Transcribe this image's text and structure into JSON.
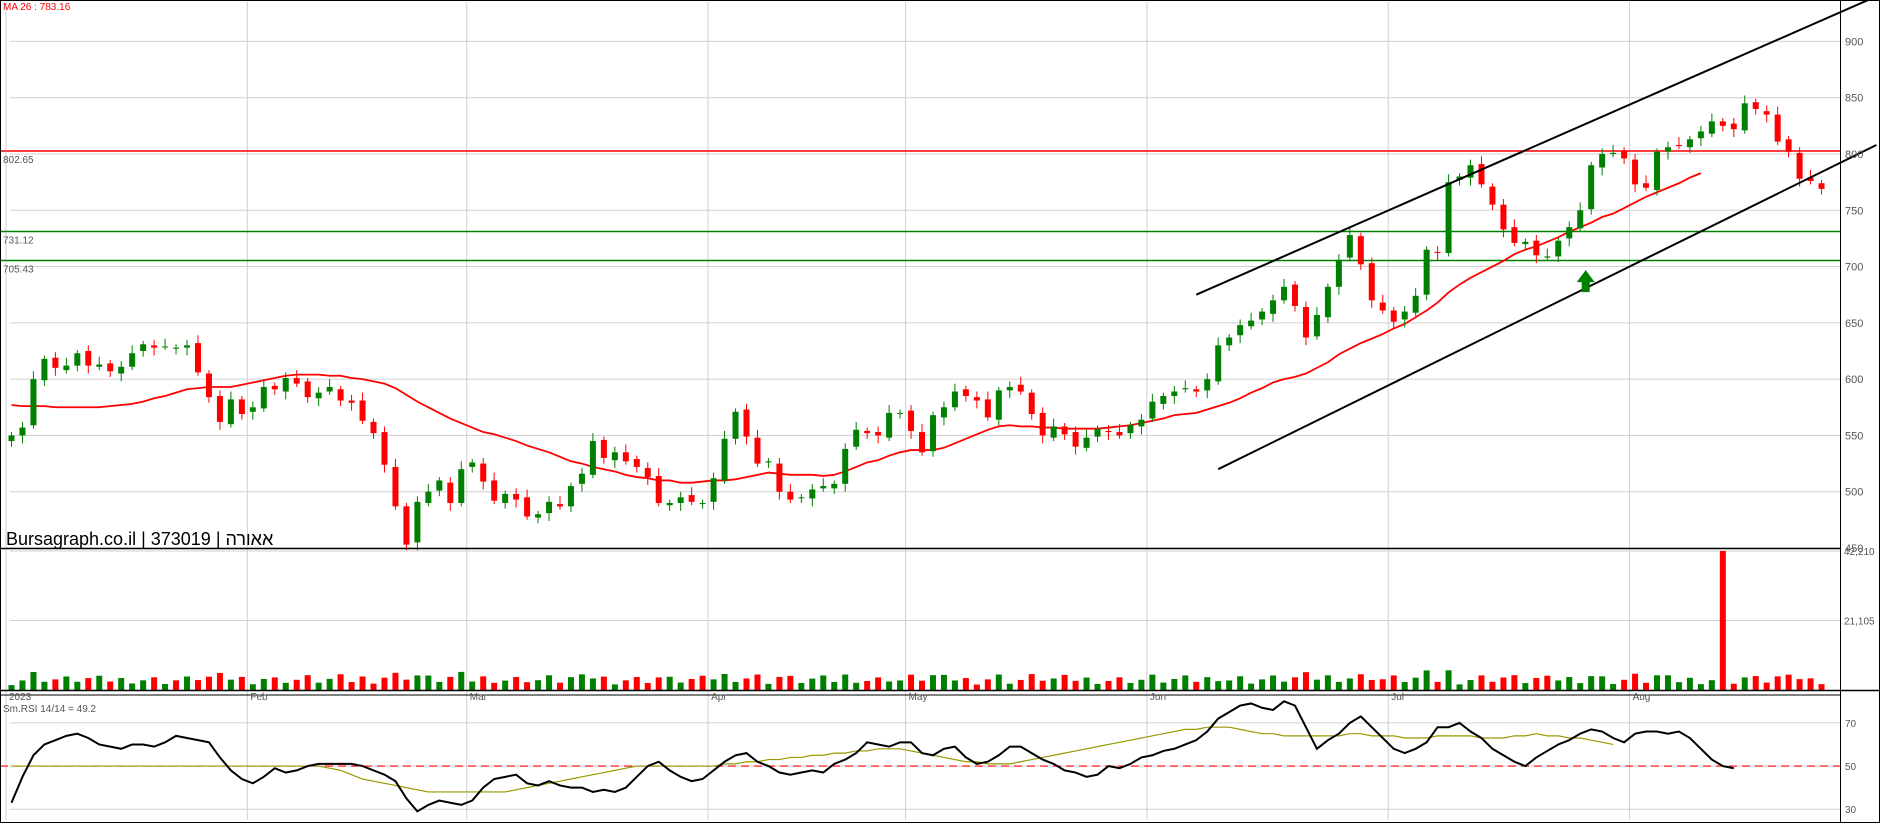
{
  "chart_data": [
    {
      "type": "candlestick",
      "title": "Bursagraph.co.il | 373019 | אאורה",
      "ma_label": "MA 26 : 783.16",
      "price_range": [
        450,
        935
      ],
      "y_ticks": [
        450,
        500,
        550,
        600,
        650,
        700,
        750,
        800,
        850,
        900
      ],
      "month_labels": [
        "2023",
        "Feb",
        "Mar",
        "Apr",
        "May",
        "Jun",
        "Jul",
        "Aug"
      ],
      "month_start_index": [
        0,
        22,
        42,
        64,
        82,
        104,
        126,
        148
      ],
      "horizontal_levels": [
        {
          "label": "802.65",
          "value": 802.65,
          "color": "#ff0000"
        },
        {
          "label": "731.12",
          "value": 731.12,
          "color": "#008000"
        },
        {
          "label": "705.43",
          "value": 705.43,
          "color": "#008000"
        }
      ],
      "trend_lines": [
        {
          "from": [
            110,
            520
          ],
          "to": [
            170,
            808
          ],
          "color": "#000000"
        },
        {
          "from": [
            108,
            675
          ],
          "to": [
            170,
            940
          ],
          "color": "#000000"
        }
      ],
      "arrow": {
        "index": 143.5,
        "value": 688,
        "color": "#008000"
      },
      "ohlc_close": [
        550,
        557,
        600,
        618,
        610,
        612,
        623,
        612,
        613,
        607,
        611,
        623,
        631,
        628,
        629,
        628,
        630,
        606,
        584,
        562,
        582,
        569,
        575,
        593,
        591,
        601,
        596,
        584,
        588,
        593,
        581,
        579,
        563,
        552,
        524,
        487,
        453,
        491,
        500,
        510,
        490,
        520,
        526,
        509,
        492,
        498,
        493,
        478,
        480,
        491,
        487,
        505,
        516,
        545,
        530,
        535,
        527,
        522,
        513,
        490,
        490,
        495,
        491,
        490,
        512,
        547,
        571,
        549,
        525,
        527,
        500,
        493,
        495,
        502,
        505,
        507,
        538,
        555,
        552,
        550,
        570,
        570,
        554,
        535,
        568,
        575,
        589,
        585,
        581,
        566,
        590,
        593,
        589,
        569,
        550,
        558,
        551,
        540,
        548,
        556,
        553,
        550,
        559,
        564,
        580,
        585,
        589,
        592,
        589,
        600,
        630,
        637,
        648,
        652,
        660,
        670,
        682,
        665,
        637,
        657,
        682,
        706,
        728,
        702,
        670,
        661,
        651,
        660,
        674,
        715,
        712,
        775,
        780,
        790,
        773,
        755,
        733,
        721,
        722,
        710,
        709,
        723,
        735,
        750,
        790,
        800,
        801,
        796,
        773,
        770,
        802,
        806,
        807,
        813,
        820,
        829,
        825,
        822,
        845,
        840,
        835,
        811,
        802,
        778,
        776,
        769
      ],
      "ma26": [
        577,
        576,
        576,
        576,
        575,
        575,
        575,
        575,
        575,
        576,
        577,
        578,
        580,
        583,
        585,
        588,
        591,
        592,
        593,
        593,
        593,
        595,
        597,
        599,
        601,
        603,
        604,
        604,
        604,
        603,
        603,
        601,
        600,
        598,
        596,
        592,
        586,
        580,
        575,
        570,
        565,
        561,
        557,
        553,
        551,
        548,
        545,
        541,
        538,
        535,
        531,
        527,
        525,
        522,
        520,
        518,
        515,
        513,
        512,
        510,
        510,
        508,
        508,
        509,
        510,
        510,
        511,
        513,
        515,
        517,
        516,
        515,
        515,
        515,
        514,
        515,
        518,
        522,
        526,
        528,
        532,
        535,
        537,
        537,
        537,
        539,
        543,
        547,
        551,
        555,
        558,
        559,
        558,
        558,
        557,
        557,
        556,
        556,
        556,
        556,
        557,
        558,
        559,
        561,
        563,
        565,
        568,
        569,
        570,
        573,
        576,
        579,
        583,
        588,
        592,
        597,
        600,
        602,
        605,
        610,
        615,
        622,
        627,
        632,
        636,
        640,
        645,
        649,
        655,
        661,
        668,
        677,
        684,
        690,
        695,
        700,
        705,
        711,
        715,
        718,
        722,
        726,
        731,
        735,
        739,
        744,
        747,
        752,
        757,
        762,
        766,
        770,
        774,
        779,
        783
      ],
      "volume_range": [
        0,
        42210
      ],
      "volume_ticks": [
        21105,
        42210
      ],
      "volume_tick_labels": [
        "21,105",
        "42,210"
      ],
      "rsi_label": "Sm.RSI 14/14 = 49.2",
      "rsi_range": [
        25,
        82
      ],
      "rsi_ticks": [
        30,
        50,
        70
      ],
      "rsi_reference": 50,
      "rsi": [
        33,
        45,
        55,
        60,
        62,
        64,
        65,
        63,
        60,
        59,
        58,
        60,
        60,
        59,
        61,
        64,
        63,
        62,
        61,
        54,
        48,
        44,
        42,
        45,
        49,
        47,
        48,
        50,
        51,
        51,
        51,
        51,
        50,
        48,
        46,
        43,
        35,
        29,
        32,
        34,
        33,
        32,
        34,
        40,
        44,
        45,
        46,
        42,
        41,
        43,
        41,
        40,
        40,
        38,
        39,
        38,
        40,
        45,
        50,
        52,
        48,
        45,
        43,
        44,
        48,
        52,
        55,
        56,
        52,
        50,
        47,
        46,
        47,
        48,
        47,
        51,
        53,
        56,
        61,
        60,
        59,
        61,
        61,
        56,
        55,
        58,
        59,
        54,
        51,
        52,
        55,
        59,
        59,
        56,
        53,
        51,
        48,
        47,
        45,
        46,
        50,
        49,
        51,
        54,
        55,
        57,
        58,
        60,
        62,
        66,
        72,
        75,
        78,
        79,
        77,
        76,
        80,
        78,
        68,
        58,
        62,
        65,
        70,
        73,
        68,
        63,
        58,
        56,
        58,
        61,
        68,
        68,
        70,
        66,
        63,
        58,
        55,
        52,
        50,
        54,
        57,
        60,
        62,
        65,
        67,
        66,
        63,
        61,
        65,
        66,
        66,
        65,
        66,
        63,
        58,
        53,
        50,
        49
      ],
      "rsi_signal": [
        50,
        50,
        50,
        50,
        50,
        50,
        50,
        50,
        50,
        50,
        50,
        50,
        50,
        50,
        50,
        50,
        50,
        50,
        50,
        50,
        50,
        50,
        50,
        50,
        50,
        50,
        50,
        50,
        50,
        49,
        48,
        46,
        44,
        43,
        42,
        41,
        40,
        39,
        38,
        38,
        38,
        38,
        38,
        38,
        38,
        38,
        39,
        40,
        41,
        42,
        43,
        44,
        45,
        46,
        47,
        48,
        49,
        50,
        50,
        50,
        50,
        50,
        50,
        50,
        50,
        51,
        51,
        52,
        52,
        53,
        53,
        54,
        54,
        55,
        55,
        56,
        56,
        57,
        57,
        58,
        58,
        58,
        57,
        56,
        55,
        54,
        53,
        52,
        52,
        51,
        51,
        51,
        52,
        53,
        54,
        55,
        56,
        57,
        58,
        59,
        60,
        61,
        62,
        63,
        64,
        65,
        66,
        67,
        67,
        68,
        68,
        68,
        67,
        66,
        65,
        65,
        64,
        64,
        64,
        64,
        64,
        64,
        65,
        65,
        64,
        64,
        64,
        63,
        63,
        63,
        64,
        64,
        64,
        64,
        63,
        63,
        63,
        64,
        64,
        65,
        64,
        64,
        63,
        63,
        62,
        61,
        60
      ]
    }
  ]
}
